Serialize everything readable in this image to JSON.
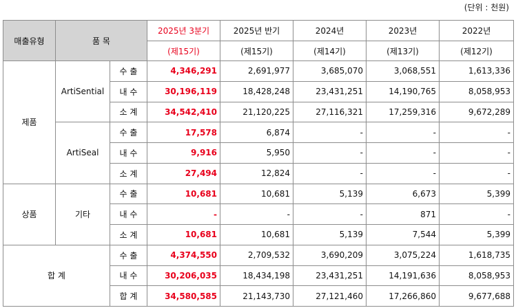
{
  "unit_note": "(단위 : 천원)",
  "header": {
    "col_type": "매출유형",
    "col_item": "품 목",
    "periods": [
      "2025년 3분기",
      "2025년 반기",
      "2024년",
      "2023년",
      "2022년"
    ],
    "terms": [
      "(제15기)",
      "(제15기)",
      "(제14기)",
      "(제13기)",
      "(제12기)"
    ]
  },
  "groups": [
    {
      "type": "제품",
      "items": [
        {
          "name": "ArtiSential",
          "rows": [
            {
              "label": "수 출",
              "values": [
                "4,346,291",
                "2,691,977",
                "3,685,070",
                "3,068,551",
                "1,613,336"
              ]
            },
            {
              "label": "내 수",
              "values": [
                "30,196,119",
                "18,428,248",
                "23,431,251",
                "14,190,765",
                "8,058,953"
              ]
            },
            {
              "label": "소 계",
              "values": [
                "34,542,410",
                "21,120,225",
                "27,116,321",
                "17,259,316",
                "9,672,289"
              ]
            }
          ]
        },
        {
          "name": "ArtiSeal",
          "rows": [
            {
              "label": "수 출",
              "values": [
                "17,578",
                "6,874",
                "-",
                "-",
                "-"
              ]
            },
            {
              "label": "내 수",
              "values": [
                "9,916",
                "5,950",
                "-",
                "-",
                "-"
              ]
            },
            {
              "label": "소 계",
              "values": [
                "27,494",
                "12,824",
                "-",
                "-",
                "-"
              ]
            }
          ]
        }
      ]
    },
    {
      "type": "상품",
      "items": [
        {
          "name": "기타",
          "rows": [
            {
              "label": "수 출",
              "values": [
                "10,681",
                "10,681",
                "5,139",
                "6,673",
                "5,399"
              ]
            },
            {
              "label": "내 수",
              "values": [
                "-",
                "-",
                "-",
                "871",
                "-"
              ]
            },
            {
              "label": "소 계",
              "values": [
                "10,681",
                "10,681",
                "5,139",
                "7,544",
                "5,399"
              ]
            }
          ]
        }
      ]
    }
  ],
  "total": {
    "label": "합 계",
    "rows": [
      {
        "label": "수 출",
        "values": [
          "4,374,550",
          "2,709,532",
          "3,690,209",
          "3,075,224",
          "1,618,735"
        ]
      },
      {
        "label": "내 수",
        "values": [
          "30,206,035",
          "18,434,198",
          "23,431,251",
          "14,191,636",
          "8,058,953"
        ]
      },
      {
        "label": "합 계",
        "values": [
          "34,580,585",
          "21,143,730",
          "27,121,460",
          "17,266,860",
          "9,677,688"
        ]
      }
    ]
  },
  "colors": {
    "current_period": "#e8001c",
    "header_bg": "#d4d4d4",
    "border": "#8c8c8c"
  }
}
